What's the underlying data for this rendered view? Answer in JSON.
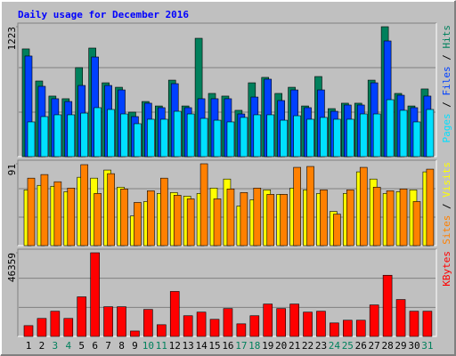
{
  "chart_data": [
    {
      "type": "bar",
      "title": "Daily usage for December 2016",
      "legend_separator": " / ",
      "ylim": [
        0,
        1223
      ],
      "yticks": [
        1223
      ],
      "series": [
        {
          "name": "Hits",
          "color": "#00805c",
          "values": [
            1014,
            712,
            570,
            545,
            838,
            1022,
            695,
            653,
            419,
            519,
            477,
            720,
            477,
            1114,
            595,
            570,
            436,
            695,
            746,
            595,
            653,
            477,
            754,
            452,
            503,
            503,
            720,
            1223,
            595,
            477,
            637
          ]
        },
        {
          "name": "Files",
          "color": "#0040ff",
          "values": [
            947,
            662,
            545,
            519,
            670,
            938,
            670,
            628,
            377,
            503,
            461,
            687,
            461,
            545,
            545,
            545,
            402,
            561,
            729,
            528,
            628,
            461,
            628,
            427,
            486,
            486,
            695,
            1089,
            578,
            461,
            570
          ]
        },
        {
          "name": "Pages",
          "color": "#00e0ff",
          "values": [
            327,
            377,
            394,
            394,
            410,
            461,
            444,
            402,
            310,
            352,
            352,
            427,
            402,
            360,
            343,
            327,
            369,
            394,
            394,
            343,
            385,
            352,
            369,
            352,
            352,
            402,
            402,
            536,
            436,
            327,
            444
          ]
        }
      ]
    },
    {
      "type": "bar",
      "ylim": [
        0,
        91
      ],
      "yticks": [
        91
      ],
      "series": [
        {
          "name": "Visits",
          "color": "#ffff00",
          "values": [
            62,
            67,
            66,
            60,
            76,
            75,
            84,
            65,
            33,
            49,
            58,
            59,
            55,
            58,
            64,
            74,
            44,
            51,
            62,
            57,
            64,
            62,
            58,
            38,
            58,
            82,
            74,
            58,
            60,
            62,
            82
          ]
        },
        {
          "name": "Sites",
          "color": "#ff8000",
          "values": [
            75,
            79,
            71,
            64,
            90,
            58,
            80,
            63,
            48,
            61,
            75,
            56,
            52,
            91,
            52,
            63,
            59,
            64,
            57,
            57,
            87,
            88,
            62,
            35,
            62,
            87,
            65,
            61,
            63,
            49,
            85
          ]
        }
      ]
    },
    {
      "type": "bar",
      "ylim": [
        0,
        46359
      ],
      "yticks": [
        46359
      ],
      "categories": [
        "1",
        "2",
        "3",
        "4",
        "5",
        "6",
        "7",
        "8",
        "9",
        "10",
        "11",
        "12",
        "13",
        "14",
        "15",
        "16",
        "17",
        "18",
        "19",
        "20",
        "21",
        "22",
        "23",
        "24",
        "25",
        "26",
        "27",
        "28",
        "29",
        "30",
        "31"
      ],
      "x_label_colors": [
        "#000000",
        "#000000",
        "#00805c",
        "#00805c",
        "#000000",
        "#000000",
        "#000000",
        "#000000",
        "#000000",
        "#00805c",
        "#00805c",
        "#000000",
        "#000000",
        "#000000",
        "#000000",
        "#000000",
        "#00805c",
        "#00805c",
        "#000000",
        "#000000",
        "#000000",
        "#000000",
        "#000000",
        "#00805c",
        "#00805c",
        "#000000",
        "#000000",
        "#000000",
        "#000000",
        "#000000",
        "#00805c"
      ],
      "series": [
        {
          "name": "KBytes",
          "color": "#ff0000",
          "values": [
            5982,
            9970,
            13958,
            9970,
            21934,
            46359,
            16450,
            16450,
            2991,
            14955,
            6481,
            24925,
            11466,
            13460,
            9471,
            15453,
            6979,
            11466,
            17946,
            15453,
            17946,
            13460,
            13958,
            7477,
            8973,
            8973,
            17448,
            33898,
            20438,
            13958,
            13958
          ]
        }
      ]
    }
  ]
}
